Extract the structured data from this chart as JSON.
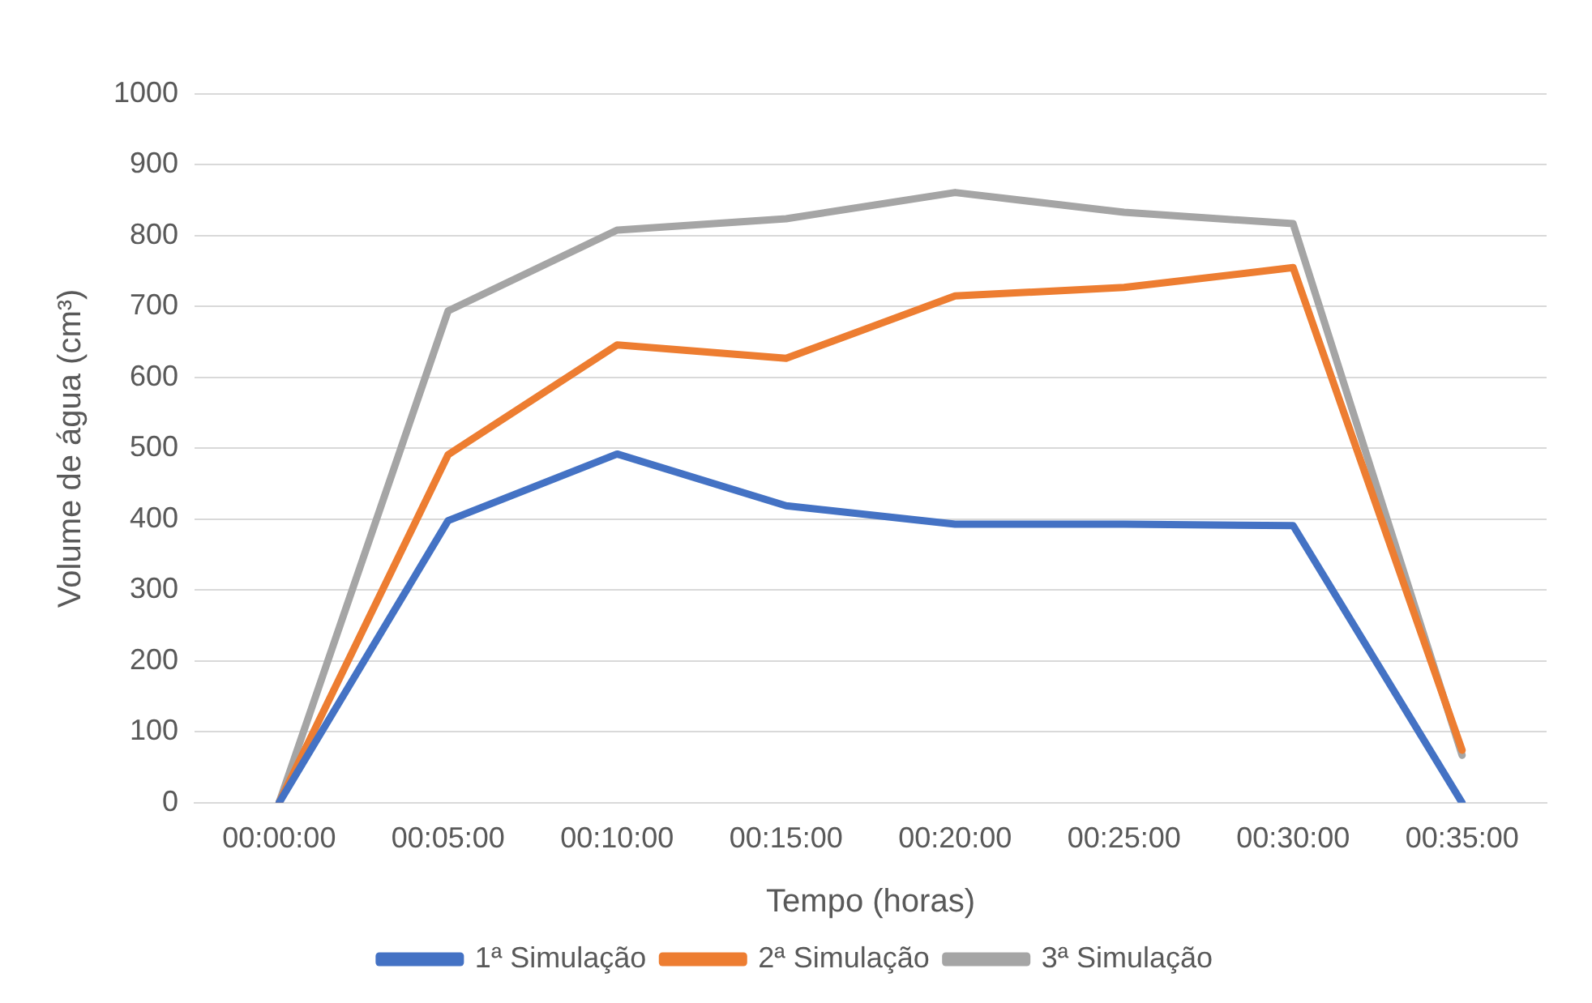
{
  "chart_data": {
    "type": "line",
    "xlabel": "Tempo (horas)",
    "ylabel": "Volume de água (cm³)",
    "categories": [
      "00:00:00",
      "00:05:00",
      "00:10:00",
      "00:15:00",
      "00:20:00",
      "00:25:00",
      "00:30:00",
      "00:35:00"
    ],
    "series": [
      {
        "name": "1ª Simulação",
        "color": "#4472c4",
        "values": [
          0,
          398,
          492,
          419,
          393,
          393,
          391,
          0
        ]
      },
      {
        "name": "2ª Simulação",
        "color": "#ed7d31",
        "values": [
          0,
          491,
          646,
          627,
          715,
          727,
          755,
          74
        ]
      },
      {
        "name": "3ª Simulação",
        "color": "#a5a5a5",
        "values": [
          0,
          694,
          808,
          824,
          861,
          833,
          817,
          67
        ]
      }
    ],
    "ylim": [
      0,
      1000
    ],
    "yticks": [
      0,
      100,
      200,
      300,
      400,
      500,
      600,
      700,
      800,
      900,
      1000
    ],
    "grid": "y",
    "legend": "bottom",
    "marker": "none",
    "line_style": "solid"
  }
}
